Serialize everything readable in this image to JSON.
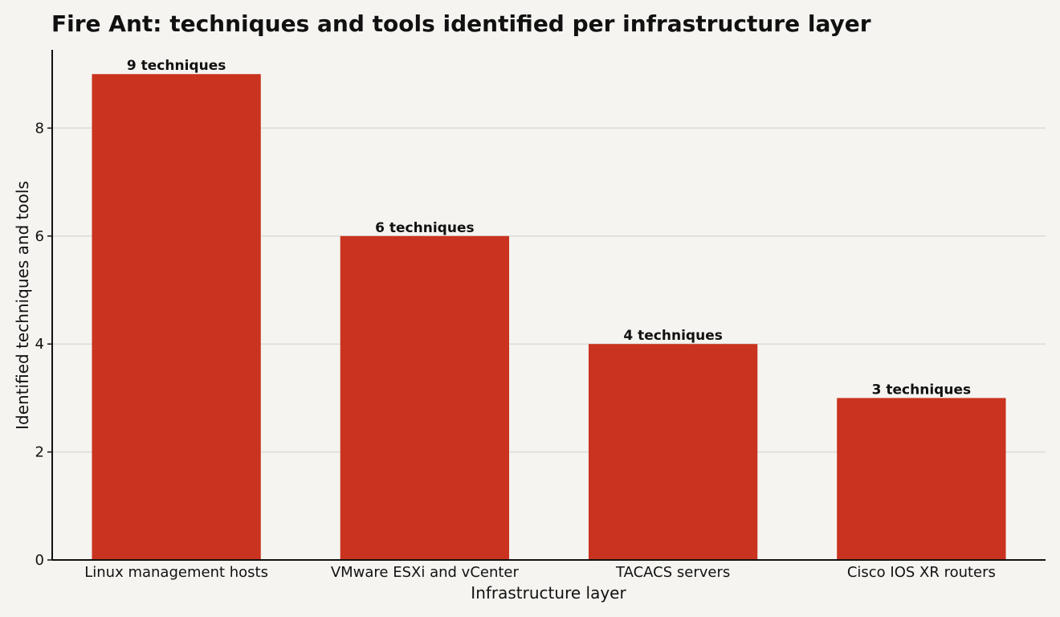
{
  "chart_data": {
    "type": "bar",
    "title": "Fire Ant: techniques and tools identified per infrastructure layer",
    "xlabel": "Infrastructure layer",
    "ylabel": "Identified techniques and tools",
    "categories": [
      "Linux management hosts",
      "VMware ESXi and vCenter",
      "TACACS servers",
      "Cisco IOS XR routers"
    ],
    "values": [
      9,
      6,
      4,
      3
    ],
    "data_labels": [
      "9 techniques",
      "6 techniques",
      "4 techniques",
      "3 techniques"
    ],
    "yticks": [
      0,
      2,
      4,
      6,
      8
    ],
    "ylim": [
      0,
      9.45
    ],
    "grid": true,
    "legend": "none",
    "bar_color": "#c9331f"
  }
}
